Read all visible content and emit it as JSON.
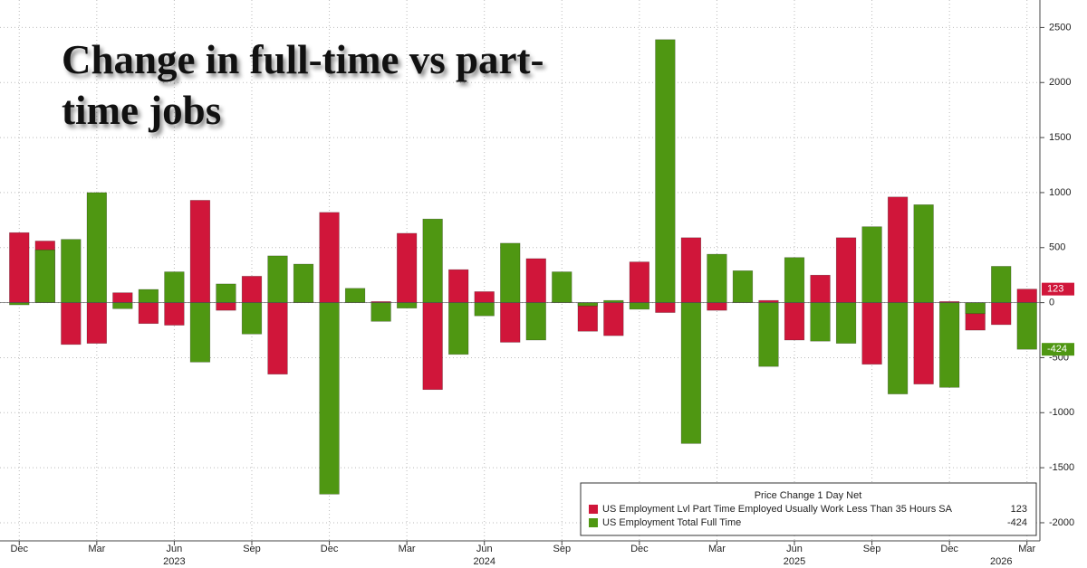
{
  "chart_data": {
    "type": "bar",
    "title": "Change in full-time vs part-time jobs",
    "categories": [
      "Dec",
      null,
      null,
      "Mar",
      null,
      null,
      "Jun",
      null,
      null,
      "Sep",
      null,
      null,
      "Dec",
      null,
      null,
      "Mar",
      null,
      null,
      "Jun",
      null,
      null,
      "Sep",
      null,
      null,
      "Dec",
      null,
      null,
      "Mar",
      null,
      null,
      "Jun",
      null,
      null,
      "Sep",
      null,
      null,
      "Dec",
      null,
      null,
      "Mar"
    ],
    "years": [
      null,
      null,
      null,
      null,
      null,
      null,
      "2023",
      null,
      null,
      null,
      null,
      null,
      null,
      null,
      null,
      null,
      null,
      null,
      "2024",
      null,
      null,
      null,
      null,
      null,
      null,
      null,
      null,
      null,
      null,
      null,
      "2025",
      null,
      null,
      null,
      null,
      null,
      null,
      null,
      "2026",
      null
    ],
    "series": [
      {
        "name": "US Employment Lvl Part Time Employed Usually Work Less Than 35 Hours SA",
        "color": "#d0163a",
        "values": [
          636,
          560,
          -380,
          -370,
          90,
          -190,
          -205,
          930,
          -70,
          240,
          -650,
          10,
          820,
          5,
          10,
          630,
          -790,
          300,
          100,
          -360,
          400,
          10,
          -260,
          -300,
          370,
          -90,
          590,
          -70,
          10,
          20,
          -340,
          250,
          590,
          -560,
          960,
          -740,
          10,
          -250,
          -200,
          123
        ]
      },
      {
        "name": "US Employment Total Full Time",
        "color": "#4f9712",
        "values": [
          -20,
          480,
          575,
          1000,
          -55,
          120,
          280,
          -540,
          170,
          -285,
          425,
          350,
          -1740,
          130,
          -170,
          -50,
          760,
          -470,
          -120,
          540,
          -340,
          280,
          -30,
          20,
          -60,
          2390,
          -1280,
          440,
          290,
          -580,
          410,
          -350,
          -370,
          690,
          -830,
          890,
          -770,
          -100,
          330,
          -424
        ]
      }
    ],
    "legend_title": "Price Change 1 Day Net",
    "ylim": [
      -2140,
      2750
    ],
    "yticks": [
      -2000,
      -1500,
      -1000,
      -500,
      0,
      500,
      1000,
      1500,
      2000,
      2500
    ],
    "grid": true
  }
}
